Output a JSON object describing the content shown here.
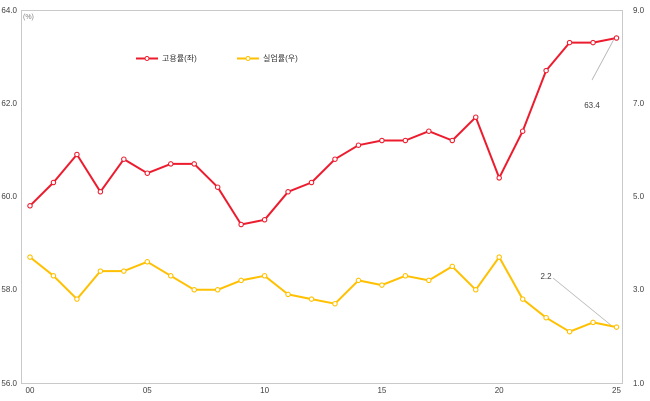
{
  "chart_data": {
    "type": "line",
    "title": "",
    "unit_label_left": "(%)",
    "categories": [
      "00",
      "01",
      "02",
      "03",
      "04",
      "05",
      "06",
      "07",
      "08",
      "09",
      "10",
      "11",
      "12",
      "13",
      "14",
      "15",
      "16",
      "17",
      "18",
      "19",
      "20",
      "21",
      "22",
      "23",
      "24",
      "25"
    ],
    "x_tick_labels": [
      "00",
      "05",
      "10",
      "15",
      "20",
      "25"
    ],
    "series": [
      {
        "name": "고용률(좌)",
        "axis": "left",
        "color": "#ec1c2e",
        "values": [
          59.8,
          60.3,
          60.9,
          60.1,
          60.8,
          60.5,
          60.7,
          60.7,
          60.2,
          59.4,
          59.5,
          60.1,
          60.3,
          60.8,
          61.1,
          61.2,
          61.2,
          61.4,
          61.2,
          61.7,
          60.4,
          61.4,
          62.7,
          63.3,
          63.3,
          63.4
        ]
      },
      {
        "name": "실업률(우)",
        "axis": "right",
        "color": "#ffc000",
        "values": [
          3.7,
          3.3,
          2.8,
          3.4,
          3.4,
          3.6,
          3.3,
          3.0,
          3.0,
          3.2,
          3.3,
          2.9,
          2.8,
          2.7,
          3.2,
          3.1,
          3.3,
          3.2,
          3.5,
          3.0,
          3.7,
          2.8,
          2.4,
          2.1,
          2.3,
          2.2
        ]
      }
    ],
    "left_axis": {
      "min": 56.0,
      "max": 64.0,
      "tick_labels": [
        "64.0",
        "62.0",
        "60.0",
        "58.0",
        "56.0"
      ]
    },
    "right_axis": {
      "min": 1.0,
      "max": 9.0,
      "tick_labels": [
        "9.0",
        "7.0",
        "5.0",
        "3.0",
        "1.0"
      ]
    },
    "annotations": [
      {
        "text": "63.4",
        "series": "고용률(좌)",
        "point": "25"
      },
      {
        "text": "2.2",
        "series": "실업률(우)",
        "point": "25"
      }
    ],
    "grid": false,
    "legend_position": "top-center",
    "colors": {
      "leader_line": "#b3b3b3",
      "plot_border": "#c9c9c9",
      "tick_text": "#404040"
    }
  }
}
